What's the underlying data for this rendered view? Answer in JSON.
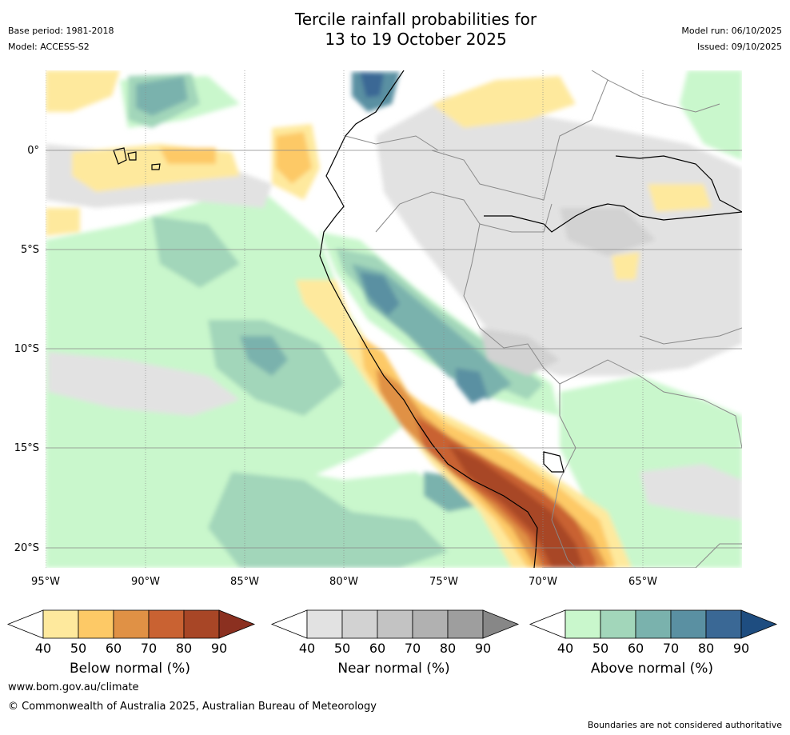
{
  "header": {
    "title_line1": "Tercile rainfall probabilities for",
    "title_line2": "13 to 19 October 2025",
    "base_period": "Base period: 1981-2018",
    "model": "Model: ACCESS-S2",
    "model_run": "Model run: 06/10/2025",
    "issued": "Issued: 09/10/2025"
  },
  "map": {
    "lat_labels": [
      "0°",
      "5°S",
      "10°S",
      "15°S",
      "20°S"
    ],
    "lon_labels": [
      "95°W",
      "90°W",
      "85°W",
      "80°W",
      "75°W",
      "70°W",
      "65°W"
    ],
    "colors": {
      "land_border": "#8a8a8a",
      "coast": "#000000",
      "grid": "#888888"
    }
  },
  "colorbars": {
    "ticks": [
      "40",
      "50",
      "60",
      "70",
      "80",
      "90"
    ],
    "below": {
      "label": "Below normal (%)",
      "colors": [
        "#ffffff",
        "#fee99d",
        "#fdc966",
        "#e09145",
        "#c96232",
        "#a84626",
        "#8b3020"
      ]
    },
    "near": {
      "label": "Near normal (%)",
      "colors": [
        "#ffffff",
        "#e2e2e2",
        "#d2d2d2",
        "#c3c3c3",
        "#b1b1b1",
        "#9e9e9e",
        "#878787"
      ]
    },
    "above": {
      "label": "Above normal (%)",
      "colors": [
        "#ffffff",
        "#c9f7cc",
        "#a2d6ba",
        "#7ab2ad",
        "#5a90a2",
        "#3a6895",
        "#1e4d80"
      ]
    }
  },
  "footer": {
    "website": "www.bom.gov.au/climate",
    "copyright": "© Commonwealth of Australia 2025, Australian Bureau of Meteorology",
    "disclaimer": "Boundaries are not considered authoritative"
  }
}
